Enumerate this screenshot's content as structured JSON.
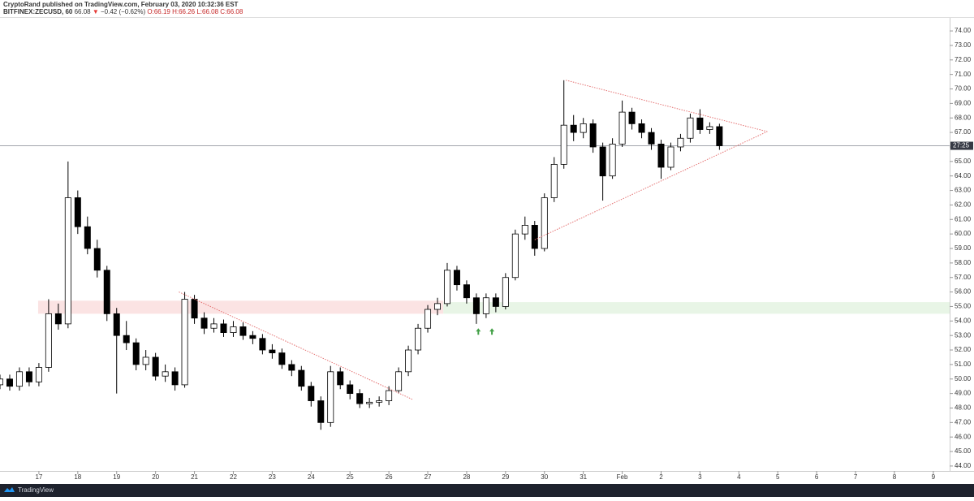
{
  "header": {
    "publisher": "CryptoRand published on TradingView.com, February 03, 2020 10:32:36 EST",
    "symbol": "BITFINEX:ZECUSD, 60",
    "last": "66.08",
    "arrow": "▼",
    "change": "−0.42 (−0.62%)",
    "open": "O:66.19",
    "high": "H:66.26",
    "low": "L:66.08",
    "close": "C:66.08"
  },
  "footer": {
    "brand": "TradingView"
  },
  "chart_data": {
    "type": "candlestick",
    "x": [
      -1.0,
      -0.75,
      -0.5,
      -0.25,
      0.0,
      0.25,
      0.5,
      0.75,
      1.0,
      1.25,
      1.5,
      1.75,
      2.0,
      2.25,
      2.5,
      2.75,
      3.0,
      3.25,
      3.5,
      3.75,
      4.0,
      4.25,
      4.5,
      4.75,
      5.0,
      5.25,
      5.5,
      5.75,
      6.0,
      6.25,
      6.5,
      6.75,
      7.0,
      7.25,
      7.5,
      7.75,
      8.0,
      8.25,
      8.5,
      8.75,
      9.0,
      9.25,
      9.5,
      9.75,
      10.0,
      10.25,
      10.5,
      10.75,
      11.0,
      11.25,
      11.5,
      11.75,
      12.0,
      12.25,
      12.5,
      12.75,
      13.0,
      13.25,
      13.5,
      13.75,
      14.0,
      14.25,
      14.5,
      14.75,
      15.0,
      15.25,
      15.5,
      15.75,
      16.0,
      16.25,
      16.5,
      16.75,
      17.0,
      17.25,
      17.5
    ],
    "open": [
      49.6,
      50.0,
      49.5,
      50.5,
      49.8,
      50.8,
      54.5,
      53.8,
      62.5,
      60.5,
      59.0,
      57.5,
      54.5,
      53.0,
      52.5,
      51.0,
      51.5,
      50.2,
      50.5,
      49.6,
      55.5,
      54.2,
      53.5,
      53.8,
      53.2,
      53.6,
      53.0,
      52.8,
      52.0,
      51.8,
      51.0,
      50.6,
      49.5,
      48.5,
      47.0,
      50.5,
      49.6,
      49.0,
      48.3,
      48.4,
      48.5,
      49.2,
      50.5,
      52.0,
      53.5,
      54.8,
      55.2,
      57.5,
      56.5,
      55.6,
      54.5,
      55.6,
      55.0,
      57.0,
      60.0,
      60.6,
      59.0,
      62.5,
      64.8,
      67.5,
      67.0,
      67.6,
      66.0,
      64.0,
      66.2,
      68.4,
      67.6,
      67.0,
      66.2,
      64.6,
      66.0,
      66.6,
      68.0,
      67.2,
      67.4
    ],
    "high": [
      50.3,
      50.3,
      50.8,
      50.8,
      51.1,
      55.5,
      55.2,
      65.0,
      63.0,
      61.2,
      59.6,
      57.8,
      54.9,
      54.0,
      52.8,
      52.0,
      51.8,
      51.0,
      50.8,
      56.0,
      55.8,
      54.6,
      54.2,
      54.1,
      54.0,
      53.9,
      53.3,
      53.1,
      52.4,
      52.1,
      51.3,
      50.9,
      49.8,
      48.8,
      50.9,
      50.8,
      49.9,
      49.3,
      48.7,
      48.8,
      49.5,
      50.8,
      52.3,
      53.8,
      55.1,
      55.6,
      58.0,
      57.8,
      56.8,
      55.9,
      55.9,
      55.9,
      57.3,
      60.3,
      61.2,
      60.9,
      62.8,
      65.3,
      70.6,
      68.2,
      68.0,
      67.9,
      66.3,
      66.6,
      69.2,
      68.7,
      67.9,
      67.3,
      66.5,
      66.3,
      66.9,
      68.3,
      68.6,
      67.7,
      67.6
    ],
    "low": [
      49.3,
      49.2,
      49.2,
      49.5,
      49.5,
      50.5,
      53.4,
      53.5,
      60.0,
      58.6,
      57.0,
      54.0,
      49.0,
      52.0,
      50.6,
      50.6,
      49.9,
      49.8,
      49.2,
      49.4,
      53.8,
      53.1,
      53.2,
      52.9,
      52.9,
      52.7,
      52.4,
      51.7,
      51.4,
      50.7,
      50.2,
      49.2,
      48.1,
      46.5,
      46.7,
      49.3,
      48.6,
      48.0,
      48.0,
      48.1,
      48.2,
      49.0,
      50.2,
      51.7,
      53.2,
      54.4,
      55.0,
      56.1,
      55.2,
      53.8,
      54.2,
      54.6,
      54.8,
      56.8,
      59.6,
      58.5,
      58.8,
      62.2,
      64.5,
      66.4,
      66.6,
      65.6,
      62.3,
      63.8,
      66.0,
      67.2,
      66.6,
      65.8,
      63.8,
      64.4,
      65.7,
      66.3,
      66.9,
      66.9,
      65.8
    ],
    "close": [
      50.0,
      49.5,
      50.5,
      49.8,
      50.8,
      54.5,
      53.8,
      62.5,
      60.5,
      59.0,
      57.5,
      54.5,
      53.0,
      52.5,
      51.0,
      51.5,
      50.2,
      50.5,
      49.6,
      55.5,
      54.2,
      53.5,
      53.8,
      53.2,
      53.6,
      53.0,
      52.8,
      52.0,
      51.8,
      51.0,
      50.6,
      49.5,
      48.5,
      47.0,
      50.5,
      49.6,
      49.0,
      48.3,
      48.4,
      48.5,
      49.2,
      50.5,
      52.0,
      53.5,
      54.8,
      55.2,
      57.5,
      56.5,
      55.6,
      54.5,
      55.6,
      55.0,
      57.0,
      60.0,
      60.6,
      59.0,
      62.5,
      64.8,
      67.5,
      67.0,
      67.6,
      66.0,
      64.0,
      66.2,
      68.4,
      67.6,
      67.0,
      66.2,
      64.6,
      66.0,
      66.6,
      68.0,
      67.2,
      67.4,
      66.08
    ],
    "up_color": "#ffffff",
    "down_color": "#000000",
    "wick_color": "#000000",
    "xlim": [
      -1.0,
      23.42
    ],
    "ylim": [
      43.66,
      74.9
    ],
    "xticks": [
      {
        "value": 0,
        "label": "17"
      },
      {
        "value": 1,
        "label": "18"
      },
      {
        "value": 2,
        "label": "19"
      },
      {
        "value": 3,
        "label": "20"
      },
      {
        "value": 4,
        "label": "21"
      },
      {
        "value": 5,
        "label": "22"
      },
      {
        "value": 6,
        "label": "23"
      },
      {
        "value": 7,
        "label": "24"
      },
      {
        "value": 8,
        "label": "25"
      },
      {
        "value": 9,
        "label": "26"
      },
      {
        "value": 10,
        "label": "27"
      },
      {
        "value": 11,
        "label": "28"
      },
      {
        "value": 12,
        "label": "29"
      },
      {
        "value": 13,
        "label": "30"
      },
      {
        "value": 14,
        "label": "31"
      },
      {
        "value": 15,
        "label": "Feb"
      },
      {
        "value": 16,
        "label": "2"
      },
      {
        "value": 17,
        "label": "3"
      },
      {
        "value": 18,
        "label": "4"
      },
      {
        "value": 19,
        "label": "5"
      },
      {
        "value": 20,
        "label": "6"
      },
      {
        "value": 21,
        "label": "7"
      },
      {
        "value": 22,
        "label": "8"
      },
      {
        "value": 23,
        "label": "9"
      }
    ],
    "yticks": [
      {
        "value": 44,
        "label": "44.00"
      },
      {
        "value": 45,
        "label": "45.00"
      },
      {
        "value": 46,
        "label": "46.00"
      },
      {
        "value": 47,
        "label": "47.00"
      },
      {
        "value": 48,
        "label": "48.00"
      },
      {
        "value": 49,
        "label": "49.00"
      },
      {
        "value": 50,
        "label": "50.00"
      },
      {
        "value": 51,
        "label": "51.00"
      },
      {
        "value": 52,
        "label": "52.00"
      },
      {
        "value": 53,
        "label": "53.00"
      },
      {
        "value": 54,
        "label": "54.00"
      },
      {
        "value": 55,
        "label": "55.00"
      },
      {
        "value": 56,
        "label": "56.00"
      },
      {
        "value": 57,
        "label": "57.00"
      },
      {
        "value": 58,
        "label": "58.00"
      },
      {
        "value": 59,
        "label": "59.00"
      },
      {
        "value": 60,
        "label": "60.00"
      },
      {
        "value": 61,
        "label": "61.00"
      },
      {
        "value": 62,
        "label": "62.00"
      },
      {
        "value": 63,
        "label": "63.00"
      },
      {
        "value": 64,
        "label": "64.00"
      },
      {
        "value": 65,
        "label": "65.00"
      },
      {
        "value": 66,
        "label": "66.00"
      },
      {
        "value": 67,
        "label": "67.00"
      },
      {
        "value": 68,
        "label": "68.00"
      },
      {
        "value": 69,
        "label": "69.00"
      },
      {
        "value": 70,
        "label": "70.00"
      },
      {
        "value": 71,
        "label": "71.00"
      },
      {
        "value": 72,
        "label": "72.00"
      },
      {
        "value": 73,
        "label": "73.00"
      },
      {
        "value": 74,
        "label": "74.00"
      }
    ],
    "price_line": {
      "value": 66.08,
      "label": "27:25",
      "color": "#9598a1"
    },
    "zones": [
      {
        "x": [
          -0.02,
          10.4
        ],
        "y": [
          54.5,
          55.4
        ],
        "color": "#fbe3e3"
      },
      {
        "x": [
          10.4,
          23.42
        ],
        "y": [
          54.5,
          55.3
        ],
        "color": "#e8f5e6"
      }
    ],
    "trendlines": [
      {
        "x": [
          3.6,
          9.6
        ],
        "y": [
          56.0,
          48.6
        ],
        "color": "#e57373"
      },
      {
        "x": [
          13.55,
          18.73
        ],
        "y": [
          70.6,
          67.06
        ],
        "color": "#e57373"
      },
      {
        "x": [
          12.75,
          18.73
        ],
        "y": [
          59.6,
          67.06
        ],
        "color": "#e57373"
      }
    ],
    "arrows": {
      "x": [
        11.3,
        11.65
      ],
      "y": [
        53.5,
        53.5
      ],
      "color": "#43a047"
    }
  }
}
